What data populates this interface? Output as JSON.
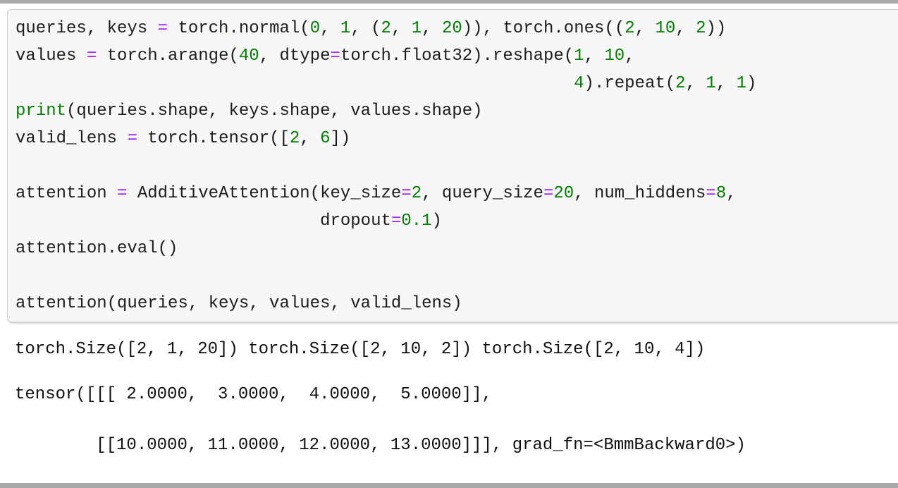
{
  "page": {
    "background": "#ffffff",
    "chrome_bar_color": "#a9a9a9"
  },
  "code_cell": {
    "background": "#f7f7f7",
    "border_color": "#cfcfcf",
    "token_colors": {
      "plain": "#1c1c1c",
      "operator": "#AA22FF",
      "number": "#008000",
      "builtin": "#008000"
    },
    "lines": [
      [
        [
          "p",
          "queries, keys "
        ],
        [
          "o",
          "="
        ],
        [
          "p",
          " torch.normal("
        ],
        [
          "n",
          "0"
        ],
        [
          "p",
          ", "
        ],
        [
          "n",
          "1"
        ],
        [
          "p",
          ", ("
        ],
        [
          "n",
          "2"
        ],
        [
          "p",
          ", "
        ],
        [
          "n",
          "1"
        ],
        [
          "p",
          ", "
        ],
        [
          "n",
          "20"
        ],
        [
          "p",
          ")), torch.ones(("
        ],
        [
          "n",
          "2"
        ],
        [
          "p",
          ", "
        ],
        [
          "n",
          "10"
        ],
        [
          "p",
          ", "
        ],
        [
          "n",
          "2"
        ],
        [
          "p",
          "))"
        ]
      ],
      [
        [
          "p",
          "values "
        ],
        [
          "o",
          "="
        ],
        [
          "p",
          " torch.arange("
        ],
        [
          "n",
          "40"
        ],
        [
          "p",
          ", dtype"
        ],
        [
          "o",
          "="
        ],
        [
          "p",
          "torch.float32).reshape("
        ],
        [
          "n",
          "1"
        ],
        [
          "p",
          ", "
        ],
        [
          "n",
          "10"
        ],
        [
          "p",
          ","
        ]
      ],
      [
        [
          "p",
          "                                                       "
        ],
        [
          "n",
          "4"
        ],
        [
          "p",
          ").repeat("
        ],
        [
          "n",
          "2"
        ],
        [
          "p",
          ", "
        ],
        [
          "n",
          "1"
        ],
        [
          "p",
          ", "
        ],
        [
          "n",
          "1"
        ],
        [
          "p",
          ")"
        ]
      ],
      [
        [
          "b",
          "print"
        ],
        [
          "p",
          "(queries.shape, keys.shape, values.shape)"
        ]
      ],
      [
        [
          "p",
          "valid_lens "
        ],
        [
          "o",
          "="
        ],
        [
          "p",
          " torch.tensor(["
        ],
        [
          "n",
          "2"
        ],
        [
          "p",
          ", "
        ],
        [
          "n",
          "6"
        ],
        [
          "p",
          "])"
        ]
      ],
      [],
      [
        [
          "p",
          "attention "
        ],
        [
          "o",
          "="
        ],
        [
          "p",
          " AdditiveAttention(key_size"
        ],
        [
          "o",
          "="
        ],
        [
          "n",
          "2"
        ],
        [
          "p",
          ", query_size"
        ],
        [
          "o",
          "="
        ],
        [
          "n",
          "20"
        ],
        [
          "p",
          ", num_hiddens"
        ],
        [
          "o",
          "="
        ],
        [
          "n",
          "8"
        ],
        [
          "p",
          ","
        ]
      ],
      [
        [
          "p",
          "                              dropout"
        ],
        [
          "o",
          "="
        ],
        [
          "n",
          "0.1"
        ],
        [
          "p",
          ")"
        ]
      ],
      [
        [
          "p",
          "attention.eval()"
        ]
      ],
      [],
      [
        [
          "p",
          "attention(queries, keys, values, valid_lens)"
        ]
      ]
    ]
  },
  "outputs": {
    "stream_text": "torch.Size([2, 1, 20]) torch.Size([2, 10, 2]) torch.Size([2, 10, 4])",
    "result_lines": [
      "tensor([[[ 2.0000,  3.0000,  4.0000,  5.0000]],",
      "",
      "        [[10.0000, 11.0000, 12.0000, 13.0000]]], grad_fn=<BmmBackward0>)"
    ]
  }
}
